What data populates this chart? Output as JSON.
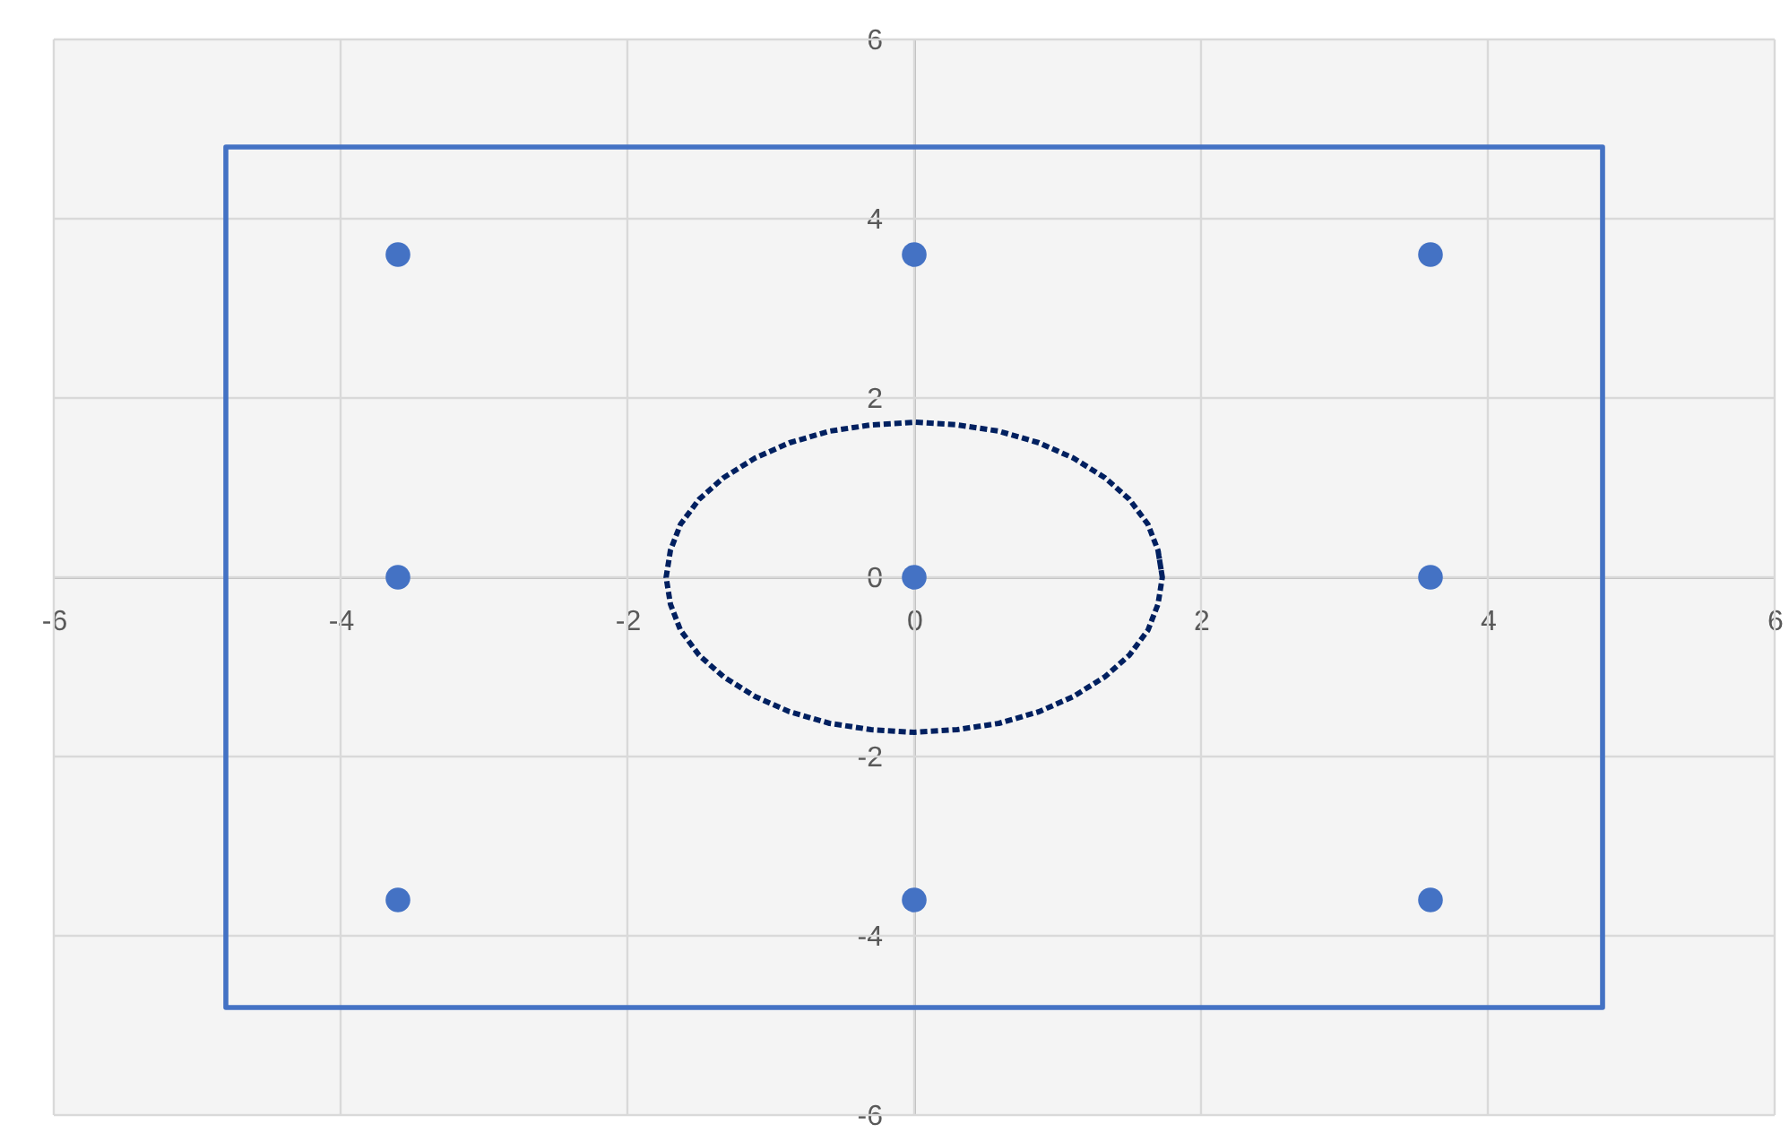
{
  "chart_data": {
    "type": "scatter",
    "xlim": [
      -6,
      6
    ],
    "ylim": [
      -6,
      6
    ],
    "xticks": [
      -6,
      -4,
      -2,
      0,
      2,
      4,
      6
    ],
    "yticks": [
      -6,
      -4,
      -2,
      0,
      2,
      4,
      6
    ],
    "grid": true,
    "series": [
      {
        "type": "line",
        "color": "#4472c4",
        "line_style": "solid",
        "marker": "none",
        "x": [
          -4.8,
          4.8,
          4.8,
          -4.8,
          -4.8,
          4.8
        ],
        "values": [
          4.8,
          4.8,
          -4.8,
          -4.8,
          4.8,
          4.8
        ]
      },
      {
        "type": "line",
        "color": "#002060",
        "line_style": "dotted",
        "marker": "none",
        "x": [
          1.73,
          1.7,
          1.63,
          1.5,
          1.33,
          1.11,
          0.87,
          0.59,
          0.3,
          0,
          -0.3,
          -0.59,
          -0.87,
          -1.11,
          -1.33,
          -1.5,
          -1.63,
          -1.7,
          -1.73,
          -1.7,
          -1.63,
          -1.5,
          -1.33,
          -1.11,
          -0.87,
          -0.59,
          -0.3,
          0,
          0.3,
          0.59,
          0.87,
          1.11,
          1.33,
          1.5,
          1.63,
          1.7,
          1.73,
          1.7
        ],
        "values": [
          0,
          0.3,
          0.59,
          0.87,
          1.11,
          1.33,
          1.5,
          1.63,
          1.7,
          1.73,
          1.7,
          1.63,
          1.5,
          1.33,
          1.11,
          0.87,
          0.59,
          0.3,
          0,
          -0.3,
          -0.59,
          -0.87,
          -1.11,
          -1.33,
          -1.5,
          -1.63,
          -1.7,
          -1.73,
          -1.7,
          -1.63,
          -1.5,
          -1.33,
          -1.11,
          -0.87,
          -0.59,
          -0.3,
          0,
          0.3
        ]
      },
      {
        "color": "#4472c4",
        "marker": "circle",
        "x": [
          -3.6,
          0,
          3.6,
          -3.6,
          0,
          3.6,
          -3.6,
          0,
          3.6
        ],
        "values": [
          3.6,
          3.6,
          3.6,
          0,
          0,
          0,
          -3.6,
          -3.6,
          -3.6
        ]
      }
    ]
  }
}
